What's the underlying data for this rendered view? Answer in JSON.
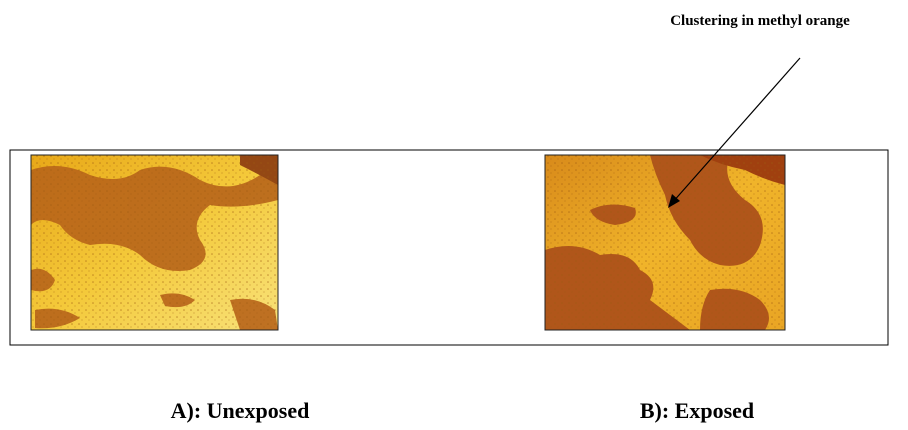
{
  "annotation": "Clustering in methyl orange",
  "panels": [
    {
      "caption": "A): Unexposed"
    },
    {
      "caption": "B): Exposed"
    }
  ]
}
